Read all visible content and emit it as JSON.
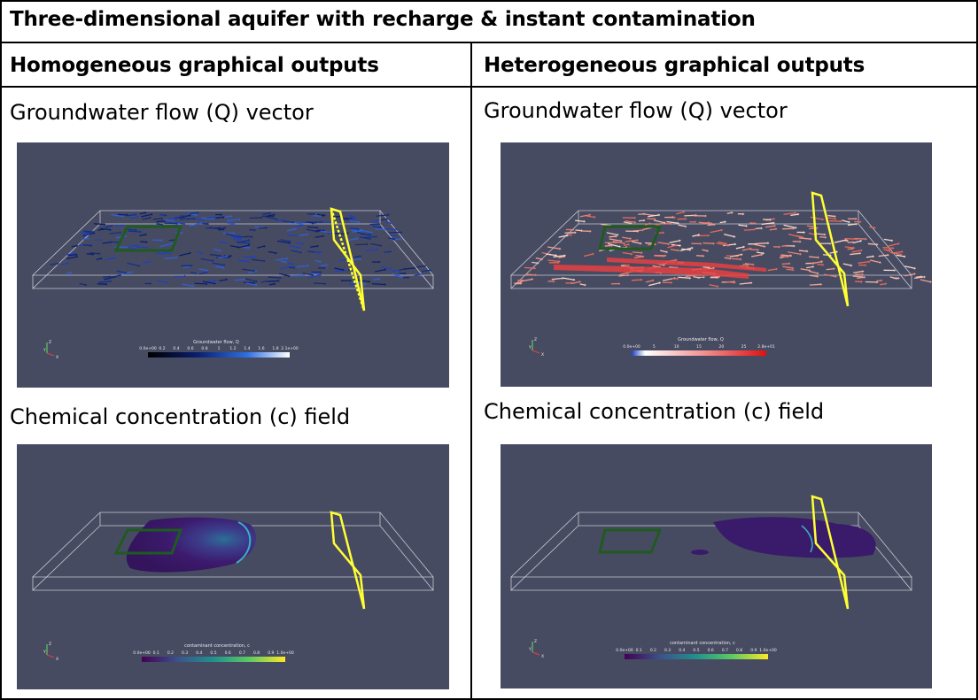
{
  "title": "Three-dimensional aquifer with recharge & instant contamination",
  "columns": {
    "left": "Homogeneous graphical outputs",
    "right": "Heterogeneous graphical outputs"
  },
  "rows": {
    "flow": "Groundwater flow (Q) vector",
    "conc": "Chemical concentration (c) field"
  },
  "panels": {
    "hom_flow": {
      "colorbar_title": "Groundwater flow, Q",
      "ticks": [
        "0.0e+00",
        "0.2",
        "0.4",
        "0.6",
        "0.8",
        "1",
        "1.2",
        "1.4",
        "1.6",
        "1.8",
        "2.1e+00"
      ]
    },
    "het_flow": {
      "colorbar_title": "Groundwater flow, Q",
      "ticks": [
        "0.0e+00",
        "5",
        "10",
        "15",
        "20",
        "25",
        "2.8e+01"
      ]
    },
    "hom_conc": {
      "colorbar_title": "contaminant concentration, c",
      "ticks": [
        "0.0e+00",
        "0.1",
        "0.2",
        "0.3",
        "0.4",
        "0.5",
        "0.6",
        "0.7",
        "0.8",
        "0.9",
        "1.0e+00"
      ]
    },
    "het_conc": {
      "colorbar_title": "contaminant concentration, c",
      "ticks": [
        "0.0e+00",
        "0.1",
        "0.2",
        "0.3",
        "0.4",
        "0.5",
        "0.6",
        "0.7",
        "0.8",
        "0.9",
        "1.0e+00"
      ]
    }
  },
  "axes_triad": {
    "z": "Z",
    "y": "Y",
    "x": "X"
  },
  "colors": {
    "background": "#474b62",
    "recharge_zone": "#1f5a1f",
    "monitoring_plane": "#ffff33",
    "flow_hom": "#1f3fbf",
    "flow_het": "#f0a090",
    "plume": "#3c1a6e"
  }
}
